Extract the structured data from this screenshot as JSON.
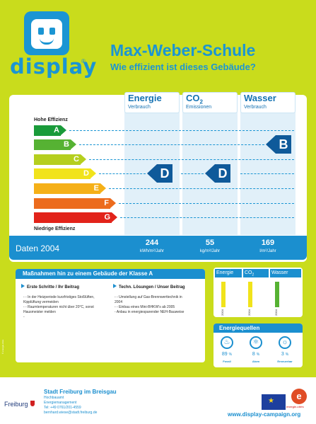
{
  "brand": {
    "logo_text": "display",
    "registered": "®"
  },
  "header": {
    "school": "Max-Weber-Schule",
    "question": "Wie effizient ist dieses Gebäude?"
  },
  "columns": [
    {
      "title": "Energie",
      "title_sub": "",
      "subtitle": "Verbrauch",
      "rating": "D",
      "value": "244",
      "unit": "kWh/m²/Jahr"
    },
    {
      "title": "CO",
      "title_sub": "2",
      "subtitle": "Emissionen",
      "rating": "D",
      "value": "55",
      "unit": "kg/m²/Jahr"
    },
    {
      "title": "Wasser",
      "title_sub": "",
      "subtitle": "Verbrauch",
      "rating": "B",
      "value": "169",
      "unit": "l/m²/Jahr"
    }
  ],
  "scale": {
    "top_label": "Hohe Effizienz",
    "bottom_label": "Niedrige Effizienz",
    "classes": [
      {
        "letter": "A",
        "color": "#1a9b3a"
      },
      {
        "letter": "B",
        "color": "#56b233"
      },
      {
        "letter": "C",
        "color": "#b5cf1e"
      },
      {
        "letter": "D",
        "color": "#f1e31b"
      },
      {
        "letter": "E",
        "color": "#f5b018"
      },
      {
        "letter": "F",
        "color": "#ec6b1d"
      },
      {
        "letter": "G",
        "color": "#e2231a"
      }
    ]
  },
  "data_bar": {
    "title": "Daten 2004"
  },
  "measures": {
    "title": "Maßnahmen hin zu einem Gebäude der Klasse A",
    "left_title": "Erste Schritte / Ihr Beitrag",
    "left_lines": [
      "- - In der Heizperiode kurzfristiges Stoßlüften,",
      "Kipplüftung vermeiden",
      "- - Raumtemperaturen nicht über 20°C, sonst",
      "Hausmeister melden",
      "-"
    ],
    "right_title": "Techn. Lösungen / Unser Beitrag",
    "right_lines": [
      "- - Umstellung auf Gas-Brennwerttechnik in",
      "2004",
      "- - Einbau eines Mini-BHKW's ab 2005",
      "- Anbau in energiesparender NEH-Bauweise"
    ]
  },
  "mini_chart": {
    "headers": [
      {
        "label": "Energie",
        "sub": ""
      },
      {
        "label": "CO",
        "sub": "2"
      },
      {
        "label": "Wasser",
        "sub": ""
      }
    ],
    "bars": [
      {
        "rating": "D",
        "color": "#f1e31b",
        "year": "2004"
      },
      {
        "rating": "D",
        "color": "#f1e31b",
        "year": "2004"
      },
      {
        "rating": "B",
        "color": "#56b233",
        "year": "2004"
      }
    ]
  },
  "sources": {
    "title": "Energiequellen",
    "items": [
      {
        "icon": "fossil-flame-icon",
        "glyph": "♨",
        "value": "89",
        "unit": "%",
        "label": "Fossil"
      },
      {
        "icon": "atom-icon",
        "glyph": "⚛",
        "value": "8",
        "unit": "%",
        "label": "Atom"
      },
      {
        "icon": "sun-icon",
        "glyph": "☼",
        "value": "3",
        "unit": "%",
        "label": "Erneuerbar"
      }
    ]
  },
  "footer": {
    "city_logo": "Freiburg",
    "city": "Stadt Freiburg im Breisgau",
    "contact": [
      "Hochbauamt",
      "Energiemanagement",
      "Tel: +49 0761/201-4559",
      "bernhard.wiese@stadt.freiburg.de"
    ],
    "eu_stars": "★",
    "partner_mark": "e",
    "partner_label": "energie-cités",
    "url": "www.display-campaign.org",
    "side_text": "© energie-cités"
  }
}
